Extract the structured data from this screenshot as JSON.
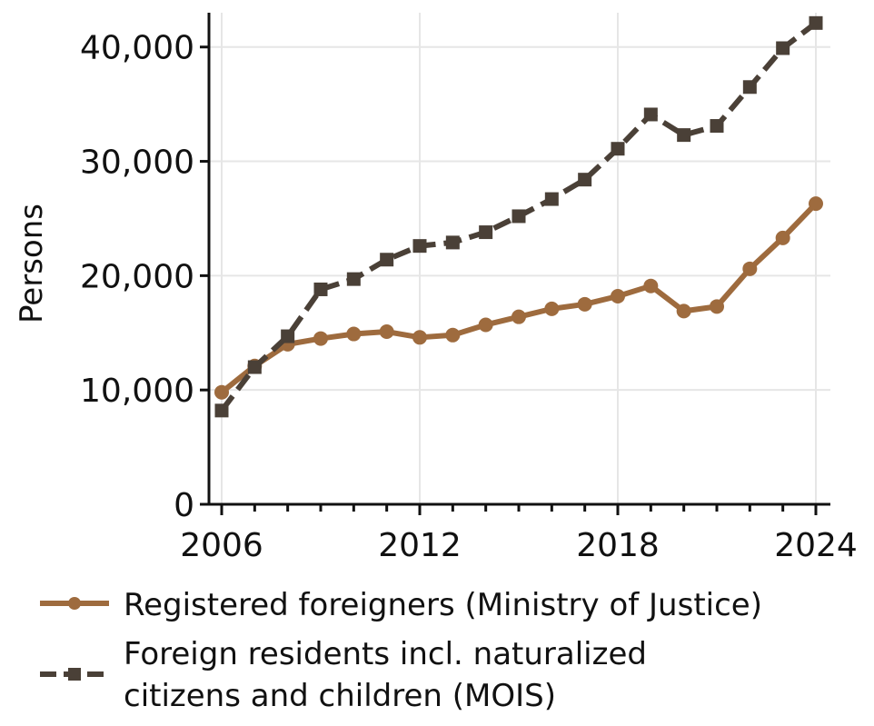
{
  "chart_data": {
    "type": "line",
    "title": "",
    "xlabel": "",
    "ylabel": "Persons",
    "x": [
      2006,
      2007,
      2008,
      2009,
      2010,
      2011,
      2012,
      2013,
      2014,
      2015,
      2016,
      2017,
      2018,
      2019,
      2020,
      2021,
      2022,
      2023,
      2024
    ],
    "xlim": [
      2006,
      2024
    ],
    "ylim": [
      0,
      43000
    ],
    "x_ticks": [
      2006,
      2012,
      2018,
      2024
    ],
    "y_ticks": [
      0,
      10000,
      20000,
      30000,
      40000
    ],
    "x_tick_labels": [
      "2006",
      "2012",
      "2018",
      "2024"
    ],
    "y_tick_labels": [
      "0",
      "10,000",
      "20,000",
      "30,000",
      "40,000"
    ],
    "grid": true,
    "legend_position": "bottom",
    "series": [
      {
        "name": "Registered foreigners (Ministry of Justice)",
        "color": "#9e6b3e",
        "marker": "circle",
        "style": "solid",
        "values": [
          9800,
          12100,
          14000,
          14500,
          14900,
          15100,
          14600,
          14800,
          15700,
          16400,
          17100,
          17500,
          18200,
          19100,
          16900,
          17300,
          20600,
          23300,
          26300
        ]
      },
      {
        "name": "Foreign residents incl. naturalized citizens and children (MOIS)",
        "legend_lines": [
          "Foreign residents incl. naturalized",
          "citizens and children (MOIS)"
        ],
        "color": "#4a4037",
        "marker": "square",
        "style": "dashed",
        "values": [
          8200,
          12000,
          14700,
          18800,
          19700,
          21400,
          22600,
          22900,
          23800,
          25200,
          26700,
          28400,
          31100,
          34100,
          32300,
          33100,
          36500,
          39900,
          42100
        ]
      }
    ]
  }
}
